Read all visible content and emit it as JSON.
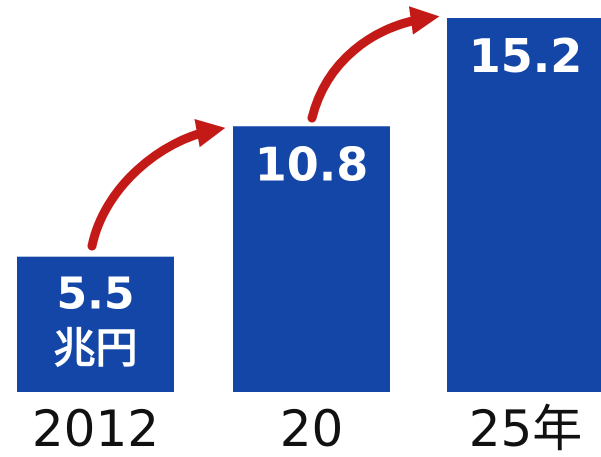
{
  "chart_data": {
    "type": "bar",
    "categories": [
      "2012",
      "20",
      "25年"
    ],
    "values": [
      5.5,
      10.8,
      15.2
    ],
    "value_labels": [
      "5.5",
      "10.8",
      "15.2"
    ],
    "unit": "兆円",
    "title": "",
    "xlabel": "",
    "ylabel": "",
    "ylim": [
      0,
      15.2
    ],
    "grid": false,
    "legend": "none",
    "trend_arrows": true
  },
  "colors": {
    "bar": "#1446a8",
    "arrow": "#c41a17",
    "text_on_bar": "#ffffff",
    "axis_text": "#111111"
  }
}
